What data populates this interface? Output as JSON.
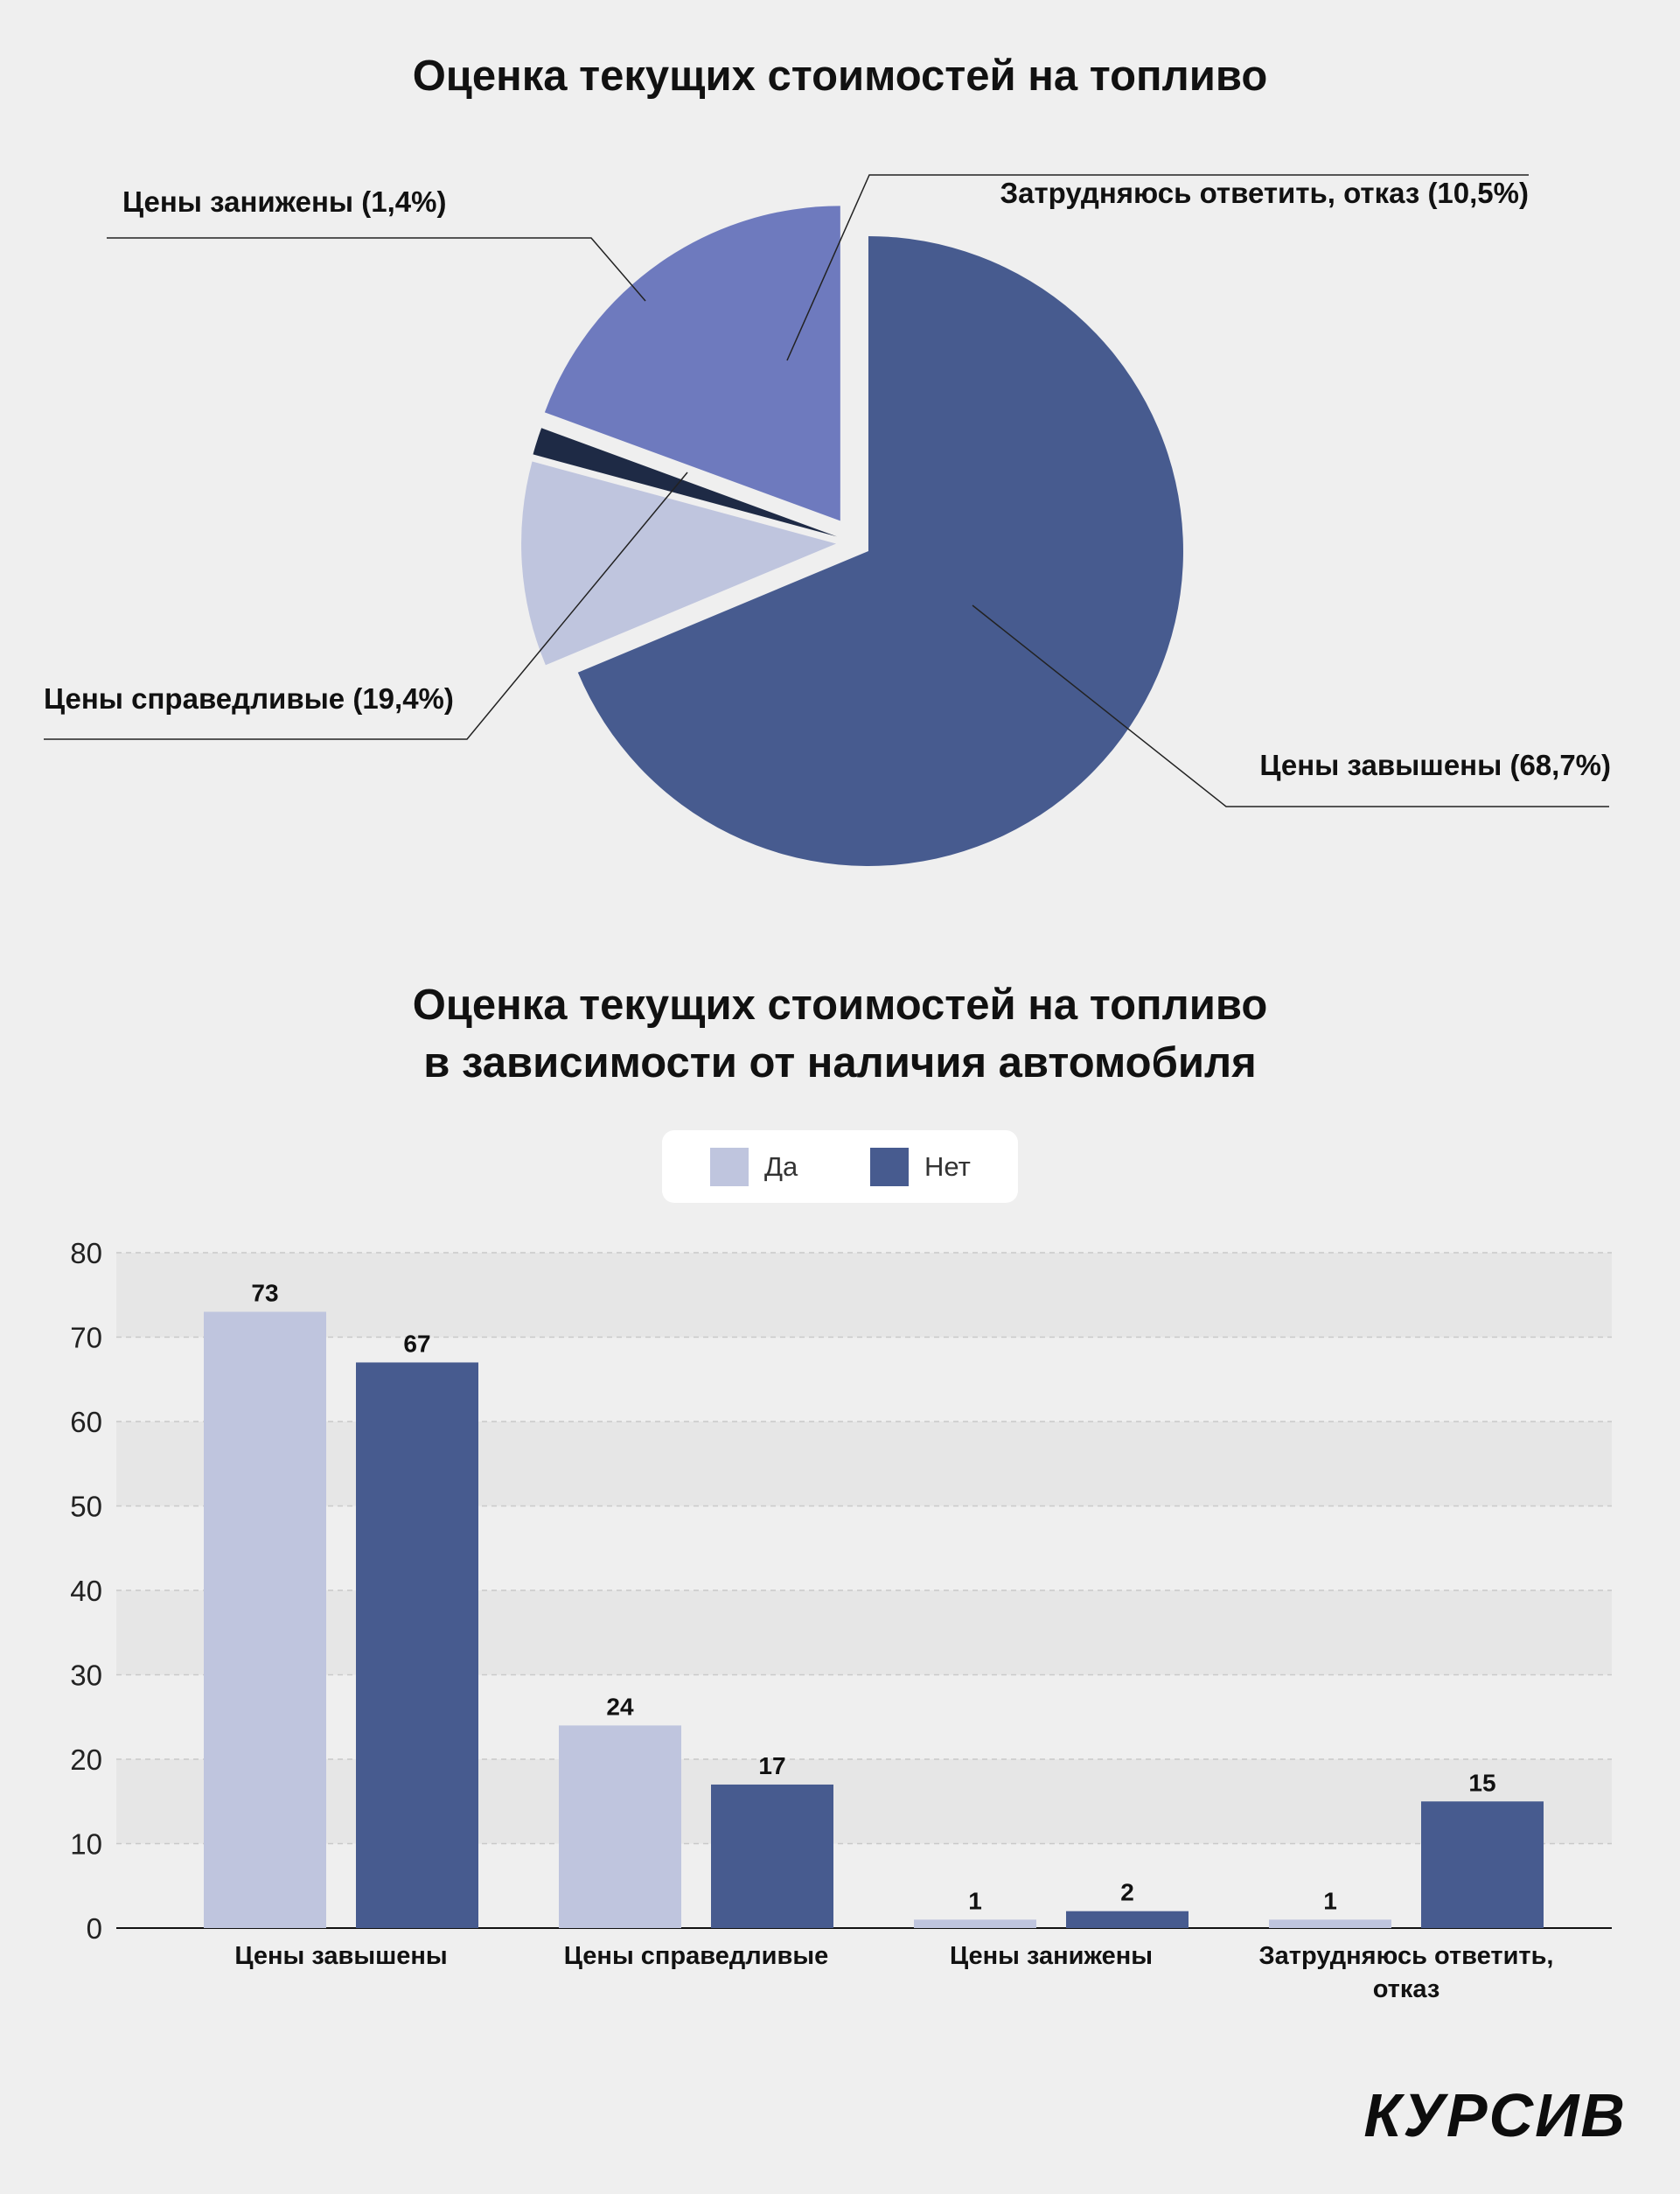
{
  "chart_data": [
    {
      "type": "pie",
      "title": "Оценка текущих стоимостей на топливо",
      "slices": [
        {
          "label": "Цены завышены (68,7%)",
          "value": 68.7,
          "color": "#475b8f"
        },
        {
          "label": "Затрудняюсь ответить, отказ (10,5%)",
          "value": 10.5,
          "color": "#bfc5de"
        },
        {
          "label": "Цены занижены (1,4%)",
          "value": 1.4,
          "color": "#1e2a45"
        },
        {
          "label": "Цены справедливые (19,4%)",
          "value": 19.4,
          "color": "#6e7abe"
        }
      ]
    },
    {
      "type": "bar",
      "title": [
        "Оценка текущих стоимостей на топливо",
        "в зависимости от наличия автомобиля"
      ],
      "categories": [
        "Цены завышены",
        "Цены справедливые",
        "Цены занижены",
        "Затрудняюсь ответить, отказ"
      ],
      "category_lines": [
        [
          "Цены завышены"
        ],
        [
          "Цены справедливые"
        ],
        [
          "Цены занижены"
        ],
        [
          "Затрудняюсь ответить,",
          "отказ"
        ]
      ],
      "series": [
        {
          "name": "Да",
          "values": [
            73,
            24,
            1,
            1
          ],
          "color": "#bfc5de"
        },
        {
          "name": "Нет",
          "values": [
            67,
            17,
            2,
            15
          ],
          "color": "#475b8f"
        }
      ],
      "ylim": [
        0,
        80
      ],
      "yticks": [
        0,
        10,
        20,
        30,
        40,
        50,
        60,
        70,
        80
      ],
      "grid": true,
      "legend": "top-center"
    }
  ],
  "logo": "КУРСИВ"
}
